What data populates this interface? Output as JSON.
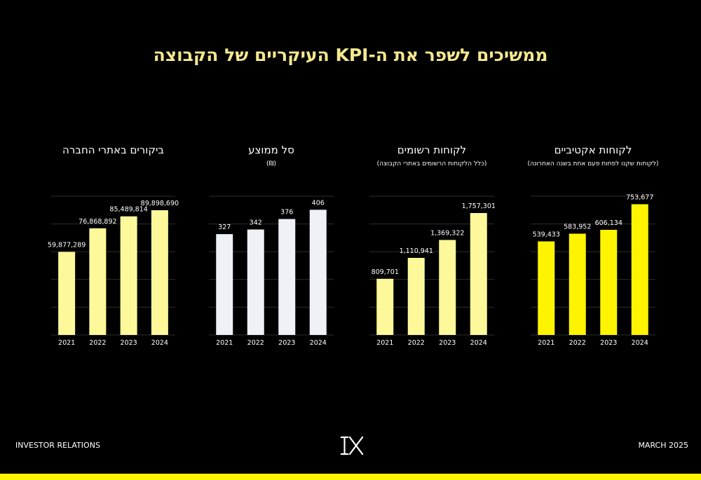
{
  "page": {
    "title": "ממשיכים לשפר את ה-KPI העיקריים של הקבוצה",
    "footer_left": "INVESTOR RELATIONS",
    "footer_right": "MARCH 2025",
    "logo_icon": "ix-logo-icon",
    "accent_color": "#fff400"
  },
  "chart_data": [
    {
      "type": "bar",
      "title": "ביקורים באתרי החברה",
      "subtitle": "",
      "categories": [
        "2021",
        "2022",
        "2023",
        "2024"
      ],
      "values": [
        59877289,
        76868892,
        85489814,
        89898690
      ],
      "labels": [
        "59,877,289",
        "76,868,892",
        "85,489,814",
        "89,898,690"
      ],
      "ylim": [
        0,
        100000000
      ],
      "grid": true,
      "color": "#fdf99a"
    },
    {
      "type": "bar",
      "title": "סל ממוצע",
      "subtitle": "(₪)",
      "categories": [
        "2021",
        "2022",
        "2023",
        "2024"
      ],
      "values": [
        327,
        342,
        376,
        406
      ],
      "labels": [
        "327",
        "342",
        "376",
        "406"
      ],
      "ylim": [
        0,
        450
      ],
      "grid": true,
      "color": "#eef1f5"
    },
    {
      "type": "bar",
      "title": "לקוחות רשומים",
      "subtitle": "(כלל הלקוחות הרשומים באתרי הקבוצה)",
      "categories": [
        "2021",
        "2022",
        "2023",
        "2024"
      ],
      "values": [
        809701,
        1110941,
        1369322,
        1757301
      ],
      "labels": [
        "809,701",
        "1,110,941",
        "1,369,322",
        "1,757,301"
      ],
      "ylim": [
        0,
        2000000
      ],
      "grid": true,
      "color": "#fdf99a"
    },
    {
      "type": "bar",
      "title": "לקוחות אקטיביים",
      "subtitle": "(לקוחות שקנו לפחות פעם אחת בשנה האחרונה)",
      "categories": [
        "2021",
        "2022",
        "2023",
        "2024"
      ],
      "values": [
        539433,
        583952,
        606134,
        753677
      ],
      "labels": [
        "539,433",
        "583,952",
        "606,134",
        "753,677"
      ],
      "ylim": [
        0,
        800000
      ],
      "grid": true,
      "color": "#fff400"
    }
  ]
}
